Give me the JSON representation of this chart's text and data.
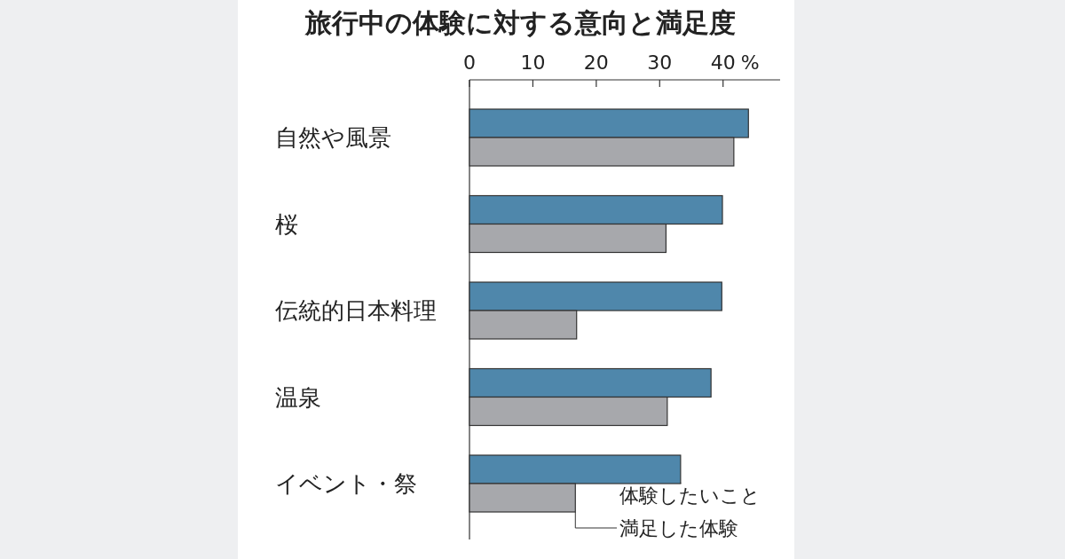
{
  "chart_data": {
    "type": "bar",
    "orientation": "horizontal",
    "title": "旅行中の体験に対する意向と満足度",
    "categories": [
      "自然や風景",
      "桜",
      "伝統的日本料理",
      "温泉",
      "イベント・祭"
    ],
    "series": [
      {
        "name": "体験したいこと",
        "color": "#4f87ab",
        "values": [
          44.0,
          39.9,
          39.8,
          38.1,
          33.3
        ]
      },
      {
        "name": "満足した体験",
        "color": "#a7a8ac",
        "values": [
          41.7,
          31.0,
          16.9,
          31.2,
          16.7
        ]
      }
    ],
    "xlabel": "%",
    "xlim": [
      0,
      49
    ],
    "xticks": [
      0,
      10,
      20,
      30,
      40
    ],
    "legend": "bottom right"
  }
}
